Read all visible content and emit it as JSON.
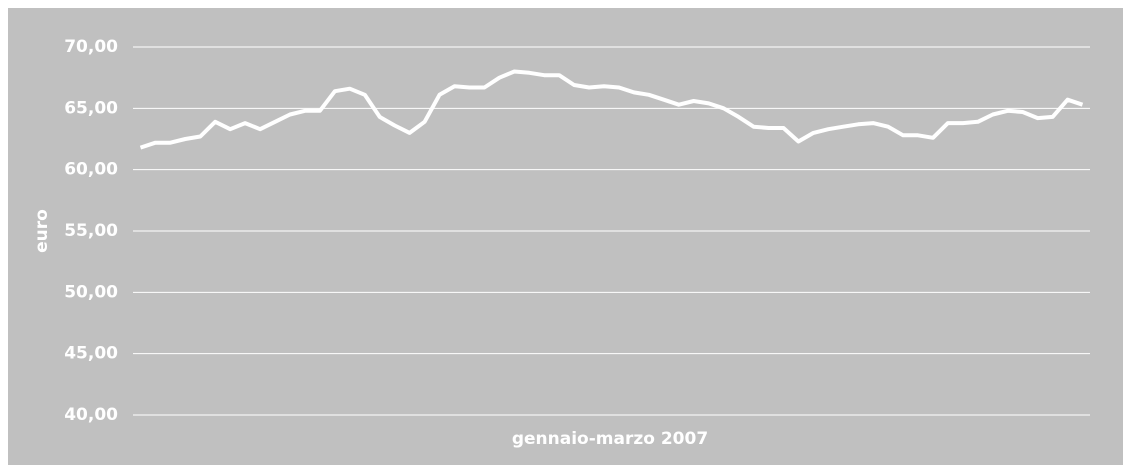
{
  "chart_data": {
    "type": "line",
    "xlabel": "gennaio-marzo 2007",
    "ylabel": "euro",
    "categories": [
      null,
      null,
      null,
      null,
      null,
      null,
      null,
      null,
      null,
      null,
      null,
      null,
      null,
      null,
      null,
      null,
      null,
      null,
      null,
      null,
      null,
      null,
      null,
      null,
      null,
      null,
      null,
      null,
      null,
      null,
      null,
      null,
      null,
      null,
      null,
      null,
      null,
      null,
      null,
      null,
      null,
      null,
      null,
      null,
      null,
      null,
      null,
      null,
      null,
      null,
      null,
      null,
      null,
      null,
      null,
      null,
      null,
      null,
      null,
      null,
      null,
      null,
      null,
      null
    ],
    "values": [
      61.8,
      62.2,
      62.2,
      62.5,
      62.7,
      63.9,
      63.3,
      63.8,
      63.3,
      63.9,
      64.5,
      64.8,
      64.8,
      66.4,
      66.6,
      66.1,
      64.3,
      63.6,
      63.0,
      63.9,
      66.1,
      66.8,
      66.7,
      66.7,
      67.5,
      68.0,
      67.9,
      67.7,
      67.7,
      66.9,
      66.7,
      66.8,
      66.7,
      66.3,
      66.1,
      65.7,
      65.3,
      65.6,
      65.4,
      65.0,
      64.3,
      63.5,
      63.4,
      63.4,
      62.3,
      63.0,
      63.3,
      63.5,
      63.7,
      63.8,
      63.5,
      62.8,
      62.8,
      62.6,
      63.8,
      63.8,
      63.9,
      64.5,
      64.8,
      64.7,
      64.2,
      64.3,
      65.7,
      65.3
    ],
    "color": "#ffffff",
    "ylim": [
      40,
      70
    ],
    "yticks": [
      {
        "value": 40,
        "label": "40,00"
      },
      {
        "value": 45,
        "label": "45,00"
      },
      {
        "value": 50,
        "label": "50,00"
      },
      {
        "value": 55,
        "label": "55,00"
      },
      {
        "value": 60,
        "label": "60,00"
      },
      {
        "value": 65,
        "label": "65,00"
      },
      {
        "value": 70,
        "label": "70,00"
      }
    ],
    "grid": true
  }
}
